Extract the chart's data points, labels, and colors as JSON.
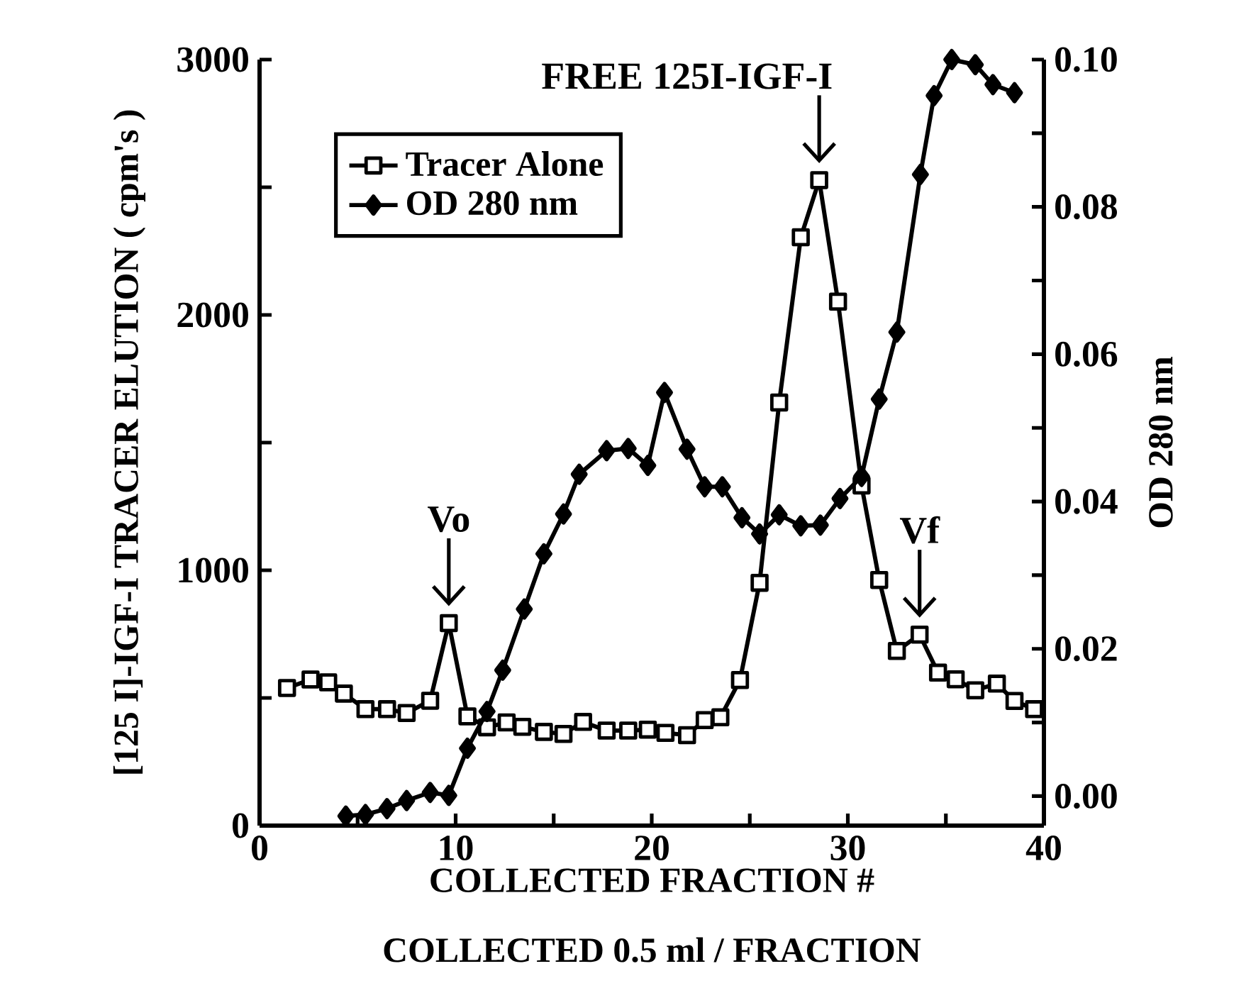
{
  "chart_data": {
    "type": "line",
    "xlabel": "COLLECTED FRACTION #",
    "ylabel": "[125 I]-IGF-I TRACER ELUTION ( cpm's )",
    "y2label": "OD 280 nm",
    "annotations": [
      {
        "text": "Vo",
        "x": 9.65,
        "y": 793
      },
      {
        "text": "FREE 125I-IGF-I",
        "x": 28.54,
        "y": 2528
      },
      {
        "text": "Vf",
        "x": 33.66,
        "y": 748
      },
      "COLLECTED 0.5 ml / FRACTION"
    ],
    "xlim": [
      0,
      40
    ],
    "ylim": [
      0,
      3000
    ],
    "y2lim": [
      -0.004,
      0.1
    ],
    "xticks": [
      0,
      {
        "value": 5,
        "label": null
      },
      10,
      {
        "value": 15,
        "label": null
      },
      20,
      {
        "value": 25,
        "label": null
      },
      30,
      {
        "value": 35,
        "label": null
      },
      40
    ],
    "yticks": [
      0,
      {
        "value": 500,
        "label": null
      },
      1000,
      {
        "value": 1500,
        "label": null
      },
      2000,
      {
        "value": 2500,
        "label": null
      },
      3000
    ],
    "y2ticks": [
      {
        "value": 0,
        "label": "0.00"
      },
      {
        "value": 0.01,
        "label": null
      },
      {
        "value": 0.02,
        "label": "0.02"
      },
      {
        "value": 0.03,
        "label": null
      },
      {
        "value": 0.04,
        "label": "0.04"
      },
      {
        "value": 0.05,
        "label": null
      },
      {
        "value": 0.06,
        "label": "0.06"
      },
      {
        "value": 0.07,
        "label": null
      },
      {
        "value": 0.08,
        "label": "0.08"
      },
      {
        "value": 0.09,
        "label": null
      },
      {
        "value": 0.1,
        "label": "0.10"
      }
    ],
    "legend": "top left",
    "grid": false,
    "series": [
      {
        "name": "Tracer Alone",
        "color": "#000000",
        "marker": "square",
        "x": [
          1.4,
          2.6,
          3.5,
          4.3,
          5.4,
          6.5,
          7.5,
          8.7,
          9.65,
          10.6,
          11.6,
          12.6,
          13.4,
          14.5,
          15.5,
          16.5,
          17.7,
          18.8,
          19.8,
          20.7,
          21.8,
          22.7,
          23.5,
          24.5,
          25.5,
          26.5,
          27.6,
          28.54,
          29.5,
          30.7,
          31.6,
          32.5,
          33.66,
          34.6,
          35.5,
          36.5,
          37.6,
          38.5,
          39.5
        ],
        "values": [
          539,
          572,
          561,
          517,
          456,
          456,
          441,
          489,
          793,
          428,
          385,
          404,
          387,
          367,
          359,
          406,
          372,
          372,
          376,
          363,
          354,
          413,
          424,
          570,
          951,
          1657,
          2304,
          2528,
          2052,
          1332,
          962,
          684,
          748,
          599,
          573,
          530,
          556,
          488,
          456
        ]
      },
      {
        "name": "OD 280 nm",
        "color": "#000000",
        "marker": "diamond",
        "axis": "y2",
        "x": [
          4.4,
          5.4,
          6.5,
          7.5,
          8.7,
          9.65,
          10.6,
          11.6,
          12.4,
          13.5,
          14.5,
          15.5,
          16.3,
          17.7,
          18.8,
          19.8,
          20.65,
          21.8,
          22.7,
          23.6,
          24.6,
          25.5,
          26.5,
          27.6,
          28.6,
          29.6,
          30.7,
          31.6,
          32.5,
          33.7,
          34.4,
          35.3,
          36.5,
          37.4,
          38.5
        ],
        "values": [
          -0.0027,
          -0.0025,
          -0.0017,
          -0.0006,
          0.0005,
          0.0001,
          0.0065,
          0.0115,
          0.0171,
          0.0254,
          0.0329,
          0.0383,
          0.0437,
          0.0469,
          0.0472,
          0.0449,
          0.0548,
          0.0471,
          0.042,
          0.042,
          0.0378,
          0.0356,
          0.0382,
          0.0367,
          0.0368,
          0.0404,
          0.0434,
          0.0539,
          0.063,
          0.0844,
          0.0951,
          0.1,
          0.0993,
          0.0966,
          0.0955
        ]
      }
    ]
  }
}
